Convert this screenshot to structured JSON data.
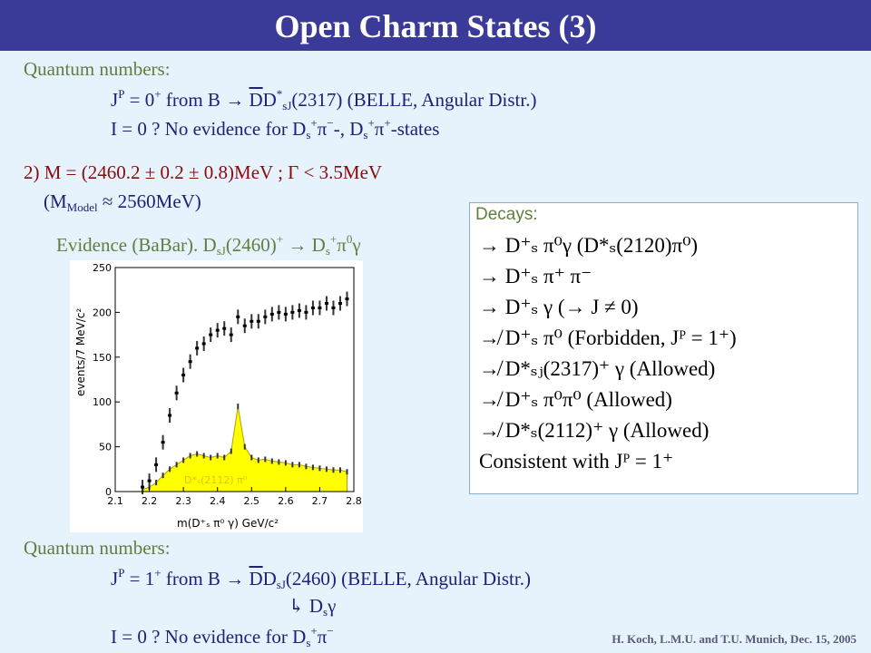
{
  "title": "Open Charm States (3)",
  "section1": {
    "heading": "Quantum numbers:",
    "line1": {
      "pre": "J",
      "p_sup": "P",
      "eq": " = 0",
      "plus_sup": "+",
      "from": " from B ",
      "arrow": "→",
      "d_bar": "D",
      "d": "D",
      "star_sup": "*",
      "sj_sub": "sJ",
      "rest": "(2317) (BELLE, Angular Distr.)"
    },
    "line2": {
      "pre": "I = 0 ?   No evidence for D",
      "s_sub": "s",
      "plus_sup": "+",
      "pi1": "π",
      "minus_sup": "−",
      "mid": "-, D",
      "s_sub2": "s",
      "plus_sup2": "+",
      "pi2": "π",
      "plus_sup3": "+",
      "end": "-states"
    }
  },
  "mass_line": {
    "text": "2) M = (2460.2 ± 0.2 ± 0.8)MeV ; Γ < 3.5MeV",
    "model_pre": "(M",
    "model_sub": "Model",
    "model_post": " ≈ 2560MeV)"
  },
  "evidence": {
    "pre": "Evidence (BaBar). D",
    "sj_sub": "sJ",
    "mid": "(2460)",
    "plus_sup": "+",
    "arrow": " → D",
    "s_sub": "s",
    "plus_sup2": "+",
    "pi": "π",
    "zero_sup": "0",
    "gamma": "γ"
  },
  "chart_data": {
    "type": "histogram",
    "xlabel": "m(D⁺ₛ π⁰ γ) GeV/c²",
    "ylabel": "events/7 MeV/c²",
    "xlim": [
      2.1,
      2.8
    ],
    "ylim": [
      0,
      250
    ],
    "x_ticks": [
      "2.1",
      "2.2",
      "2.3",
      "2.4",
      "2.5",
      "2.6",
      "2.7",
      "2.8"
    ],
    "y_ticks": [
      "0",
      "50",
      "100",
      "150",
      "200",
      "250"
    ],
    "annotation": "D*ₛ(2112) π⁰",
    "series": [
      {
        "values": [
          [
            2.18,
            5
          ],
          [
            2.2,
            12
          ],
          [
            2.22,
            30
          ],
          [
            2.24,
            55
          ],
          [
            2.26,
            85
          ],
          [
            2.28,
            110
          ],
          [
            2.3,
            130
          ],
          [
            2.32,
            145
          ],
          [
            2.34,
            160
          ],
          [
            2.36,
            165
          ],
          [
            2.38,
            175
          ],
          [
            2.4,
            180
          ],
          [
            2.42,
            182
          ],
          [
            2.44,
            175
          ],
          [
            2.46,
            195
          ],
          [
            2.48,
            185
          ],
          [
            2.5,
            190
          ],
          [
            2.52,
            190
          ],
          [
            2.54,
            195
          ],
          [
            2.56,
            198
          ],
          [
            2.58,
            200
          ],
          [
            2.6,
            198
          ],
          [
            2.62,
            200
          ],
          [
            2.64,
            202
          ],
          [
            2.66,
            200
          ],
          [
            2.68,
            205
          ],
          [
            2.7,
            205
          ],
          [
            2.72,
            210
          ],
          [
            2.74,
            205
          ],
          [
            2.76,
            210
          ],
          [
            2.78,
            215
          ]
        ]
      },
      {
        "values": [
          [
            2.18,
            2
          ],
          [
            2.2,
            5
          ],
          [
            2.22,
            10
          ],
          [
            2.24,
            18
          ],
          [
            2.26,
            25
          ],
          [
            2.28,
            30
          ],
          [
            2.3,
            35
          ],
          [
            2.32,
            40
          ],
          [
            2.34,
            42
          ],
          [
            2.36,
            40
          ],
          [
            2.38,
            38
          ],
          [
            2.4,
            40
          ],
          [
            2.42,
            38
          ],
          [
            2.44,
            45
          ],
          [
            2.46,
            95
          ],
          [
            2.48,
            50
          ],
          [
            2.5,
            38
          ],
          [
            2.52,
            35
          ],
          [
            2.54,
            36
          ],
          [
            2.56,
            34
          ],
          [
            2.58,
            33
          ],
          [
            2.6,
            32
          ],
          [
            2.62,
            30
          ],
          [
            2.64,
            30
          ],
          [
            2.66,
            28
          ],
          [
            2.68,
            27
          ],
          [
            2.7,
            26
          ],
          [
            2.72,
            25
          ],
          [
            2.74,
            24
          ],
          [
            2.76,
            24
          ],
          [
            2.78,
            22
          ]
        ]
      }
    ]
  },
  "decays": {
    "heading": "Decays:",
    "lines": [
      {
        "sym": "→",
        "text": " D⁺ₛ π⁰γ  (D*ₛ(2120)π⁰)"
      },
      {
        "sym": "→",
        "text": " D⁺ₛ π⁺ π⁻"
      },
      {
        "sym": "→",
        "text": " D⁺ₛ γ (→ J ≠ 0)"
      },
      {
        "sym": "↛",
        "text": " D⁺ₛ π⁰          (Forbidden, Jᴾ = 1⁺)"
      },
      {
        "sym": "↛",
        "text": " D*ₛⱼ(2317)⁺ γ    (Allowed)"
      },
      {
        "sym": "↛",
        "text": " D⁺ₛ π⁰π⁰          (Allowed)"
      },
      {
        "sym": "↛",
        "text": " D*ₛ(2112)⁺ γ      (Allowed)"
      },
      {
        "sym": "",
        "text": "Consistent with  Jᴾ = 1⁺"
      }
    ]
  },
  "section2": {
    "heading": "Quantum numbers:",
    "line1": {
      "pre": "J",
      "p_sup": "P",
      "eq": " = 1",
      "plus_sup": "+",
      "from": " from B ",
      "arrow": "→",
      "d_bar": "D",
      "d": "D",
      "sj_sub": "sJ",
      "rest": "(2460)   (BELLE, Angular Distr.)"
    },
    "line2": {
      "hook": "↳",
      "d": " D",
      "s_sub": "s",
      "gamma": "γ"
    },
    "line3": {
      "pre": "I = 0 ?   No evidence for D",
      "s_sub": "s",
      "plus_sup": "+",
      "pi": "π",
      "minus_sup": "−"
    }
  },
  "footer": "H. Koch, L.M.U. and T.U.  Munich, Dec. 15, 2005"
}
